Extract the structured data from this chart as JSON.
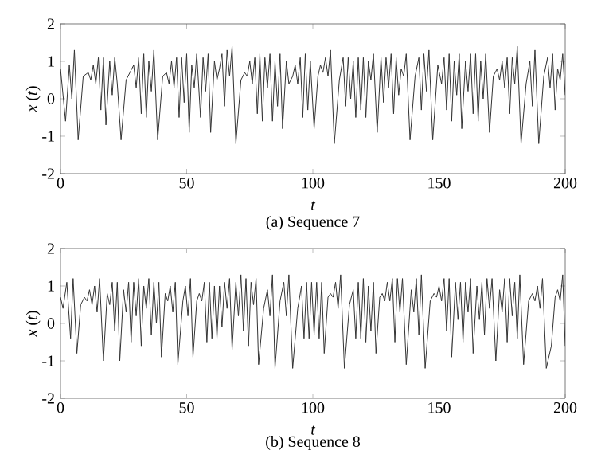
{
  "chart_data": [
    {
      "type": "line",
      "title": "(a) Sequence 7",
      "xlabel": "t",
      "ylabel": "*x* (*t*)",
      "color": "#333333",
      "xlim": [
        0,
        200
      ],
      "ylim": [
        -2,
        2
      ],
      "xticks": [
        0,
        50,
        100,
        150,
        200
      ],
      "yticks": [
        -2,
        -1,
        0,
        1,
        2
      ],
      "grid": false,
      "marker": "none",
      "x": [
        0,
        2,
        3.5,
        4.5,
        5.5,
        7,
        9,
        11,
        12,
        13,
        14,
        15,
        16,
        17,
        18,
        19.5,
        20.5,
        21.5,
        22.5,
        24,
        26,
        27.5,
        29,
        30,
        31,
        32,
        33,
        34,
        35,
        36,
        37,
        38.5,
        40.5,
        42,
        43,
        44,
        45,
        46,
        47,
        48,
        49,
        50,
        51,
        52,
        53,
        54,
        55.5,
        56.5,
        57.5,
        58.5,
        59.5,
        61,
        62,
        63,
        64,
        65,
        66,
        67,
        68,
        69.5,
        71.5,
        73,
        74,
        75,
        76,
        77,
        78,
        79,
        80,
        81,
        82,
        83,
        84,
        85,
        86,
        87,
        88,
        89.5,
        90.5,
        92,
        93,
        94,
        95,
        96,
        97,
        98,
        99,
        100.5,
        102,
        103,
        104,
        105,
        106,
        107,
        108.5,
        110.5,
        112,
        113,
        114,
        115,
        116,
        117,
        118,
        119,
        120,
        121,
        122,
        123,
        124,
        125.5,
        127,
        128,
        129,
        130,
        131,
        132,
        133,
        134,
        135,
        136,
        137,
        138.5,
        140.5,
        142,
        143,
        144,
        145,
        146,
        147.5,
        149.5,
        151,
        152,
        153,
        154,
        155,
        156,
        157,
        158,
        159,
        160.5,
        161.5,
        162.5,
        163.5,
        164.5,
        165.5,
        166.5,
        167.5,
        168.5,
        170,
        171.5,
        173,
        174,
        175,
        176,
        177,
        178,
        179,
        180,
        181,
        182.5,
        184.5,
        186,
        187,
        188,
        189.5,
        191.5,
        193,
        194,
        195,
        196,
        197,
        198,
        199,
        200
      ],
      "values": [
        0.8,
        -0.6,
        0.9,
        0,
        1.3,
        -1.1,
        0.6,
        0.7,
        0.5,
        0.9,
        0.4,
        1.1,
        -0.3,
        1.1,
        -0.7,
        1.0,
        0.1,
        1.1,
        0.4,
        -1.1,
        0.5,
        0.7,
        0.9,
        0.3,
        1.1,
        -0.4,
        1.2,
        -0.5,
        1.0,
        0.2,
        1.3,
        -1.1,
        0.6,
        0.7,
        0.4,
        1.0,
        0.3,
        1.1,
        -0.5,
        1.1,
        -0.1,
        1.2,
        -0.9,
        0.9,
        0.3,
        1.2,
        -0.5,
        1.1,
        0.2,
        1.2,
        -0.9,
        1.0,
        0.5,
        0.8,
        1.2,
        -0.2,
        1.3,
        0.6,
        1.4,
        -1.2,
        0.5,
        0.7,
        0.6,
        1.0,
        0.4,
        1.1,
        -0.4,
        1.2,
        -0.6,
        1.1,
        0.3,
        1.2,
        -0.6,
        1.0,
        -0.2,
        1.2,
        -0.8,
        1.0,
        0.4,
        0.6,
        0.9,
        0.4,
        1.1,
        -0.5,
        1.2,
        -0.3,
        1.0,
        -0.8,
        0.6,
        0.9,
        0.7,
        1.1,
        0.6,
        1.3,
        -1.2,
        0.5,
        1.1,
        -0.2,
        1.1,
        0.0,
        1.0,
        -0.5,
        1.1,
        -0.3,
        1.1,
        -0.5,
        1.0,
        0.5,
        1.2,
        -0.9,
        1.1,
        -0.1,
        1.1,
        0.3,
        1.2,
        -0.4,
        1.1,
        0.1,
        0.8,
        0.6,
        1.2,
        -1.1,
        0.6,
        1.1,
        -0.3,
        1.2,
        0.2,
        1.3,
        -1.1,
        0.9,
        0.4,
        1.1,
        -0.3,
        1.2,
        -0.6,
        1.0,
        0.1,
        1.2,
        -0.8,
        1.0,
        0.2,
        1.2,
        -0.4,
        1.2,
        -0.6,
        1.0,
        0.0,
        1.2,
        -0.9,
        0.6,
        0.8,
        0.5,
        1.0,
        0.3,
        1.1,
        -0.4,
        1.1,
        0.4,
        1.4,
        -1.2,
        0.4,
        1.0,
        -0.2,
        1.3,
        -1.2,
        0.6,
        1.1,
        0.3,
        1.2,
        -0.3,
        0.8,
        0.5,
        1.2,
        0.1
      ]
    },
    {
      "type": "line",
      "title": "(b) Sequence 8",
      "xlabel": "t",
      "ylabel": "*x* (*t*)",
      "color": "#333333",
      "xlim": [
        0,
        200
      ],
      "ylim": [
        -2,
        2
      ],
      "xticks": [
        0,
        50,
        100,
        150,
        200
      ],
      "yticks": [
        -2,
        -1,
        0,
        1,
        2
      ],
      "grid": false,
      "marker": "none",
      "x": [
        0,
        1,
        2.5,
        4,
        5,
        6.5,
        8,
        9.5,
        10.5,
        11.5,
        12.5,
        13.5,
        14.5,
        15.5,
        17,
        18.5,
        19.5,
        20.5,
        21.5,
        22.5,
        23.5,
        25,
        26,
        27,
        28,
        29,
        30,
        31,
        32,
        33,
        34,
        35,
        36,
        37,
        38,
        39,
        40,
        41.5,
        42.5,
        43.5,
        44.5,
        45.5,
        46.5,
        48.5,
        49.5,
        50.5,
        51.5,
        52.5,
        54,
        55,
        56,
        57,
        58,
        59,
        60,
        61,
        62,
        63,
        64,
        65,
        66,
        67,
        68,
        69.5,
        70.5,
        71.5,
        72.5,
        73.5,
        74.5,
        75.5,
        76.5,
        77.5,
        78.5,
        80.5,
        82,
        83,
        84,
        85,
        87,
        88.5,
        89.5,
        90.5,
        92,
        94,
        95.5,
        96.5,
        97.5,
        98.5,
        99.5,
        100.5,
        101.5,
        102.5,
        103.5,
        104.5,
        106,
        107,
        108,
        109,
        110,
        111,
        112.5,
        114.5,
        116,
        117,
        118,
        119,
        120,
        121,
        122,
        123,
        124,
        125,
        126.5,
        127.5,
        128.5,
        129.5,
        130.5,
        131.5,
        132.5,
        133.5,
        134.5,
        135.5,
        137,
        139,
        140,
        141,
        142,
        143,
        144.5,
        146.5,
        148,
        149,
        150,
        151,
        152,
        153,
        154,
        155,
        156.5,
        157.5,
        158.5,
        159.5,
        160.5,
        161.5,
        162.5,
        163.5,
        165,
        166,
        167,
        168,
        169,
        170,
        171,
        172.5,
        174,
        175,
        176,
        177,
        178,
        179,
        180,
        181,
        182,
        183.5,
        185.5,
        187,
        188,
        189,
        190,
        191,
        192.5,
        194.5,
        196,
        197,
        198,
        199,
        200
      ],
      "values": [
        0.7,
        0.4,
        1.1,
        -0.4,
        1.2,
        -0.8,
        0.5,
        0.7,
        0.6,
        0.9,
        0.5,
        1.0,
        0.3,
        1.2,
        -1.0,
        0.8,
        0.5,
        1.1,
        -0.2,
        1.1,
        -1.0,
        0.9,
        0.3,
        1.1,
        -0.5,
        1.1,
        0.2,
        1.2,
        -0.6,
        1.0,
        0.4,
        1.2,
        -0.3,
        1.1,
        0.0,
        1.1,
        -0.9,
        0.8,
        0.6,
        1.0,
        0.3,
        1.1,
        -1.1,
        0.6,
        1.0,
        0.2,
        1.2,
        -0.9,
        0.6,
        0.8,
        0.6,
        1.1,
        -0.5,
        1.1,
        -0.4,
        1.0,
        -0.4,
        1.0,
        -0.1,
        1.1,
        0.4,
        1.2,
        -0.7,
        1.1,
        0.2,
        1.3,
        -0.2,
        1.2,
        -0.6,
        1.1,
        0.5,
        1.2,
        -1.1,
        0.4,
        0.9,
        0.2,
        1.3,
        -1.2,
        0.6,
        1.1,
        0.2,
        1.3,
        -1.2,
        0.4,
        1.0,
        -0.4,
        1.1,
        -0.4,
        1.1,
        -0.3,
        1.1,
        -0.4,
        1.1,
        -0.8,
        0.7,
        0.8,
        0.7,
        1.1,
        0.4,
        1.3,
        -1.2,
        0.5,
        0.9,
        -0.4,
        1.1,
        -0.4,
        1.2,
        -0.5,
        1.0,
        -0.2,
        1.1,
        -0.8,
        0.7,
        0.8,
        0.6,
        1.1,
        0.6,
        1.2,
        -0.5,
        1.2,
        0.3,
        1.2,
        -1.1,
        0.9,
        0.3,
        1.2,
        -0.3,
        1.3,
        -1.2,
        0.6,
        0.8,
        0.7,
        1.0,
        0.6,
        1.2,
        -0.2,
        1.2,
        -0.9,
        1.1,
        0.1,
        1.1,
        -0.5,
        1.1,
        0.3,
        1.2,
        -0.8,
        1.0,
        0.1,
        1.1,
        -0.3,
        1.2,
        0.4,
        1.2,
        -1.0,
        0.9,
        0.3,
        1.2,
        -0.5,
        1.2,
        0.2,
        1.1,
        -0.4,
        1.3,
        -1.1,
        0.6,
        0.8,
        0.6,
        1.0,
        0.4,
        1.2,
        -1.2,
        -0.6,
        0.7,
        0.9,
        0.6,
        1.3,
        -0.6
      ]
    }
  ]
}
